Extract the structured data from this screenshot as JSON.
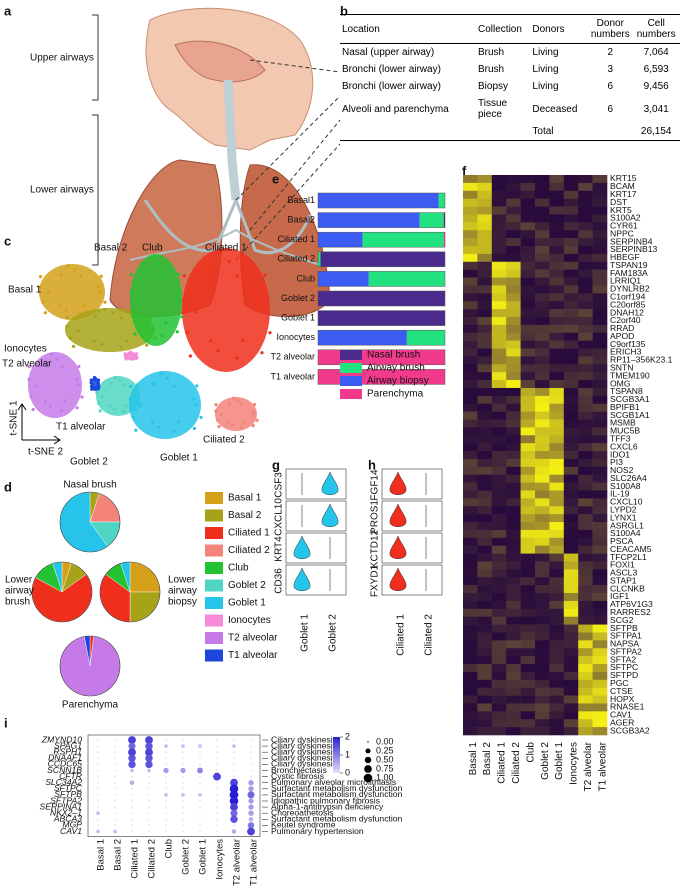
{
  "panel_labels": [
    "a",
    "b",
    "c",
    "d",
    "e",
    "f",
    "g",
    "h",
    "i"
  ],
  "a": {
    "upper": "Upper airways",
    "lower": "Lower airways"
  },
  "b": {
    "header": [
      "Location",
      "Collection",
      "Donors",
      "Donor numbers",
      "Cell numbers"
    ],
    "rows": [
      [
        "Nasal (upper airway)",
        "Brush",
        "Living",
        2,
        "7,064"
      ],
      [
        "Bronchi (lower airway)",
        "Brush",
        "Living",
        3,
        "6,593"
      ],
      [
        "Bronchi (lower airway)",
        "Biopsy",
        "Living",
        6,
        "9,456"
      ],
      [
        "Alveoli and parenchyma",
        "Tissue piece",
        "Deceased",
        6,
        "3,041"
      ]
    ],
    "total": [
      "Total",
      "26,154"
    ]
  },
  "cell_types": [
    {
      "name": "Basal 1",
      "color": "#d4a017"
    },
    {
      "name": "Basal 2",
      "color": "#a6a318"
    },
    {
      "name": "Ciliated 1",
      "color": "#ef2f1c"
    },
    {
      "name": "Ciliated 2",
      "color": "#f4837a"
    },
    {
      "name": "Club",
      "color": "#22c232"
    },
    {
      "name": "Goblet 2",
      "color": "#4fd6c2"
    },
    {
      "name": "Goblet 1",
      "color": "#26c4ea"
    },
    {
      "name": "Ionocytes",
      "color": "#f58ad6"
    },
    {
      "name": "T2 alveolar",
      "color": "#c57ae8"
    },
    {
      "name": "T1 alveolar",
      "color": "#1d46de"
    }
  ],
  "c": {
    "x_label": "t-SNE 2",
    "y_label": "t-SNE 1"
  },
  "d": {
    "pies": [
      {
        "title": [
          "Nasal brush"
        ],
        "values": [
          0,
          5,
          0,
          20,
          0,
          15,
          60,
          0,
          0,
          0
        ]
      },
      {
        "title": [
          "Lower",
          "airway",
          "brush"
        ],
        "values": [
          5,
          10,
          68,
          0,
          12,
          0,
          5,
          0,
          0,
          0
        ]
      },
      {
        "title": [
          "Lower",
          "airway",
          "biopsy"
        ],
        "values": [
          25,
          25,
          35,
          0,
          10,
          0,
          5,
          0,
          0,
          0
        ]
      },
      {
        "title": [
          "Parenchyma"
        ],
        "values": [
          0,
          0,
          2,
          0,
          0,
          0,
          0,
          0,
          95,
          3
        ]
      }
    ]
  },
  "e": {
    "categories": [
      "Basal1",
      "Basal2",
      "Ciliated 1",
      "Ciliated 2",
      "Club",
      "Goblet 2",
      "Goblet 1",
      "Ionocytes",
      "T2 alveolar",
      "T1 alveolar"
    ],
    "series": [
      {
        "name": "Airway biopsy",
        "color": "#3b5bf2",
        "values": [
          95,
          80,
          35,
          0,
          40,
          0,
          0,
          70,
          0,
          0
        ]
      },
      {
        "name": "Airway brush",
        "color": "#21e27f",
        "values": [
          5,
          19,
          64,
          2,
          60,
          0,
          0,
          30,
          0,
          0
        ]
      },
      {
        "name": "Nasal brush",
        "color": "#4a2a8c",
        "values": [
          0,
          1,
          0,
          98,
          0,
          100,
          100,
          0,
          0,
          0
        ]
      },
      {
        "name": "Parenchyma",
        "color": "#f23a8c",
        "values": [
          0,
          0,
          1,
          0,
          0,
          0,
          0,
          0,
          100,
          100
        ]
      }
    ],
    "legend_order": [
      2,
      1,
      0,
      3
    ]
  },
  "f": {
    "gene_groups": [
      [
        "KRT15",
        "BCAM",
        "KRT17",
        "DST",
        "KRT5",
        "S100A2",
        "CYR61",
        "NPPC",
        "SERPINB4",
        "SERPINB13",
        "HBEGF"
      ],
      [
        "TSPAN19",
        "FAM183A",
        "LRRIQ1",
        "DYNLRB2",
        "C1orf194",
        "C20orf85",
        "DNAH12",
        "C2orf40",
        "RRAD",
        "APOD",
        "C9orf135",
        "ERICH3",
        "RP11–356K23.1",
        "SNTN",
        "TMEM190",
        "OMG"
      ],
      [
        "TSPAN8",
        "SCGB3A1",
        "BPIFB1",
        "SCGB1A1",
        "MSMB",
        "MUC5B",
        "TFF3",
        "CXCL6",
        "IDO1",
        "PI3",
        "NOS2",
        "SLC26A4",
        "S100A8",
        "IL-19",
        "CXCL10",
        "LYPD2",
        "LYNX1",
        "ASRGL1",
        "S100A4",
        "PSCA",
        "CEACAM5"
      ],
      [
        "TFCP2L1",
        "FOXI1",
        "ASCL3",
        "STAP1",
        "CLCNKB",
        "IGF1",
        "ATP6V1G3",
        "RARRES2",
        "SCG2"
      ],
      [
        "SFTPB",
        "SFTPA1",
        "NAPSA",
        "SFTPA2",
        "SFTA2",
        "SFTPC",
        "SFTPD",
        "PGC",
        "CTSE",
        "HOPX",
        "RNASE1",
        "CAV1",
        "AGER",
        "SCGB3A2"
      ]
    ]
  },
  "g": {
    "genes": [
      "CSF3",
      "CXCL10",
      "KRT4",
      "CD36"
    ],
    "groups": [
      "Goblet 1",
      "Goblet 2"
    ]
  },
  "h": {
    "genes": [
      "FGF14",
      "PROS1",
      "KCTD12",
      "FXYD1"
    ],
    "groups": [
      "Ciliated 1",
      "Ciliated 2"
    ]
  },
  "i": {
    "rows": [
      {
        "gene": "ZMYND10",
        "disease": "Ciliary dyskinesia",
        "values": [
          0,
          0,
          0.8,
          0.8,
          0,
          0,
          0,
          0,
          0,
          0
        ]
      },
      {
        "gene": "SPAG1",
        "disease": "Ciliary dyskinesia",
        "values": [
          0,
          0,
          0.6,
          0.7,
          0.1,
          0.1,
          0.1,
          0,
          0.1,
          0
        ]
      },
      {
        "gene": "RSPH1",
        "disease": "Ciliary dyskinesia",
        "values": [
          0,
          0,
          0.8,
          0.8,
          0,
          0,
          0,
          0,
          0,
          0
        ]
      },
      {
        "gene": "DNAAF1",
        "disease": "Ciliary dyskinesia",
        "values": [
          0,
          0,
          0.7,
          0.7,
          0,
          0,
          0,
          0,
          0,
          0
        ]
      },
      {
        "gene": "CCDC65",
        "disease": "Ciliary dyskinesia",
        "values": [
          0,
          0,
          0.7,
          0.7,
          0,
          0,
          0,
          0,
          0,
          0
        ]
      },
      {
        "gene": "SCNN1B",
        "disease": "Bronchiectasis",
        "values": [
          0,
          0,
          0.1,
          0.1,
          0.3,
          0.3,
          0.4,
          0,
          0,
          0
        ]
      },
      {
        "gene": "CFTR",
        "disease": "Cystic fibrosis",
        "values": [
          0,
          0,
          0,
          0,
          0,
          0,
          0,
          0.8,
          0,
          0
        ]
      },
      {
        "gene": "SLC34A2",
        "disease": "Pulmonary alveolar microlithiasis",
        "values": [
          0,
          0,
          0.2,
          0,
          0,
          0,
          0,
          0,
          0.8,
          0.3
        ]
      },
      {
        "gene": "SFTPC",
        "disease": "Surfactant metabolism dysfunction",
        "values": [
          0,
          0,
          0,
          0,
          0,
          0,
          0,
          0,
          1,
          0.3
        ]
      },
      {
        "gene": "SFTPB",
        "disease": "Surfactant metabolism dysfunction",
        "values": [
          0,
          0,
          0,
          0,
          0.1,
          0.1,
          0.1,
          0,
          1,
          0.6
        ]
      },
      {
        "gene": "SFTPA2",
        "disease": "Idiopathic pulmonary fibrosis",
        "values": [
          0,
          0,
          0,
          0,
          0,
          0,
          0,
          0,
          1,
          0.3
        ]
      },
      {
        "gene": "SERPINA1",
        "disease": "Alpha-1-antitrypsin deficiency",
        "values": [
          0,
          0,
          0,
          0,
          0,
          0,
          0,
          0,
          0.8,
          0.3
        ]
      },
      {
        "gene": "NKX2–1",
        "disease": "Choreoathetosis",
        "values": [
          0.1,
          0,
          0,
          0,
          0,
          0,
          0,
          0,
          0.6,
          0.3
        ]
      },
      {
        "gene": "ABCA3",
        "disease": "Surfactant metabolism dysfunction",
        "values": [
          0,
          0,
          0,
          0,
          0,
          0,
          0,
          0,
          0.7,
          0.2
        ]
      },
      {
        "gene": "MGP",
        "disease": "Keutel syndrome",
        "values": [
          0,
          0,
          0,
          0,
          0,
          0,
          0,
          0,
          0,
          0.5
        ]
      },
      {
        "gene": "CAV1",
        "disease": "Pulmonary hypertension",
        "values": [
          0.1,
          0.1,
          0,
          0,
          0,
          0,
          0,
          0,
          0.2,
          0.8
        ]
      }
    ],
    "color_ticks": [
      0,
      1,
      2
    ],
    "size_ticks": [
      {
        "value": 0,
        "label": "0.00"
      },
      {
        "value": 0.25,
        "label": "0.25"
      },
      {
        "value": 0.5,
        "label": "0.50"
      },
      {
        "value": 0.75,
        "label": "0.75"
      },
      {
        "value": 1,
        "label": "1.00"
      }
    ]
  }
}
